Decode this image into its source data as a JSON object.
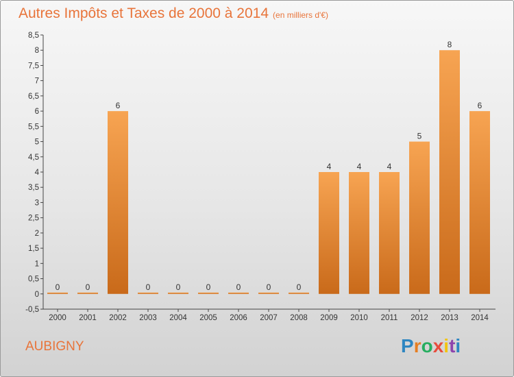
{
  "header": {
    "title": "Autres Impôts et Taxes de 2000 à 2014",
    "subtitle": "(en milliers d'€)"
  },
  "footer": {
    "city": "AUBIGNY",
    "logo": [
      "P",
      "r",
      "o",
      "x",
      "i",
      "t",
      "i"
    ],
    "logo_colors": [
      "#2e86c1",
      "#e67e22",
      "#27ae60",
      "#e74c3c",
      "#f1c40f",
      "#8e44ad",
      "#2e86c1"
    ]
  },
  "colors": {
    "bar_light": "#f7a452",
    "bar_dark": "#c96a1a",
    "title": "#e8743a"
  },
  "chart_data": {
    "type": "bar",
    "title": "Autres Impôts et Taxes de 2000 à 2014",
    "subtitle": "(en milliers d'€)",
    "categories": [
      "2000",
      "2001",
      "2002",
      "2003",
      "2004",
      "2005",
      "2006",
      "2007",
      "2008",
      "2009",
      "2010",
      "2011",
      "2012",
      "2013",
      "2014"
    ],
    "values": [
      0,
      0,
      6,
      0,
      0,
      0,
      0,
      0,
      0,
      4,
      4,
      4,
      5,
      8,
      6
    ],
    "value_labels": [
      "0",
      "0",
      "6",
      "0",
      "0",
      "0",
      "0",
      "0",
      "0",
      "4",
      "4",
      "4",
      "5",
      "8",
      "6"
    ],
    "ylim": [
      -0.5,
      8.5
    ],
    "yticks": [
      "-0,5",
      "0",
      "0,5",
      "1",
      "1,5",
      "2",
      "2,5",
      "3",
      "3,5",
      "4",
      "4,5",
      "5",
      "5,5",
      "6",
      "6,5",
      "7",
      "7,5",
      "8",
      "8,5"
    ],
    "ytick_values": [
      -0.5,
      0,
      0.5,
      1,
      1.5,
      2,
      2.5,
      3,
      3.5,
      4,
      4.5,
      5,
      5.5,
      6,
      6.5,
      7,
      7.5,
      8,
      8.5
    ],
    "grid": false,
    "legend": "none"
  }
}
